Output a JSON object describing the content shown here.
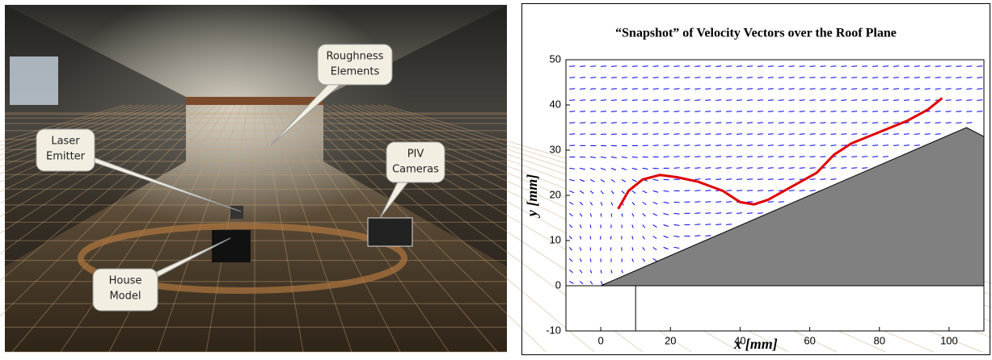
{
  "photo": {
    "callouts": [
      {
        "lines": [
          "Roughness",
          "Elements"
        ]
      },
      {
        "lines": [
          "Laser",
          "Emitter"
        ]
      },
      {
        "lines": [
          "PIV",
          "Cameras"
        ]
      },
      {
        "lines": [
          "House",
          "Model"
        ]
      }
    ]
  },
  "chart_data": {
    "type": "line",
    "title": "“Snapshot” of Velocity Vectors over the Roof Plane",
    "x_label": "x [mm]",
    "y_label": "y [mm]",
    "xlim": [
      -10,
      110
    ],
    "ylim": [
      -10,
      50
    ],
    "xticks": [
      0,
      20,
      40,
      60,
      80,
      100
    ],
    "yticks": [
      -10,
      0,
      10,
      20,
      30,
      40,
      50
    ],
    "series": [
      {
        "color": "#e00000",
        "x": [
          5,
          8,
          12,
          17,
          22,
          28,
          35,
          40,
          44,
          48,
          55,
          62,
          67,
          72,
          80,
          88,
          94,
          98
        ],
        "values": [
          17,
          21,
          23.5,
          24.5,
          24,
          23,
          21,
          18.5,
          18,
          19,
          22,
          25,
          29,
          31.5,
          34,
          36.5,
          39,
          41.5
        ]
      }
    ],
    "roof": {
      "color": "#808080",
      "x": [
        0,
        105,
        110,
        110,
        0
      ],
      "values": [
        0,
        35,
        33,
        0,
        0
      ]
    },
    "base": {
      "color": "#ffffff",
      "x": [
        -10,
        10,
        10,
        -10
      ],
      "values": [
        -10,
        -10,
        0,
        0
      ]
    }
  }
}
